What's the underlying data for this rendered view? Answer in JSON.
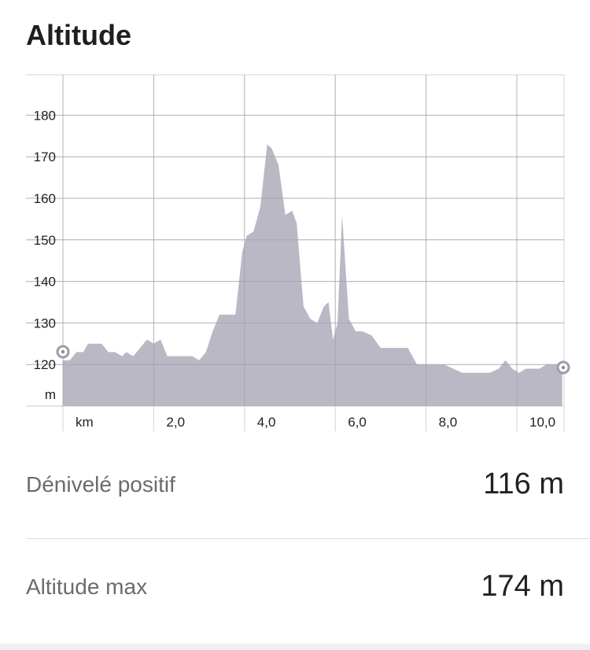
{
  "title": "Altitude",
  "chart_data": {
    "type": "area",
    "y_unit": "m",
    "x_unit": "km",
    "xlim": [
      0,
      11.0
    ],
    "ylim": [
      110,
      190
    ],
    "y_ticks": [
      120,
      130,
      140,
      150,
      160,
      170,
      180
    ],
    "y_tick_labels": [
      "120",
      "130",
      "140",
      "150",
      "160",
      "170",
      "180"
    ],
    "x_ticks": [
      2,
      4,
      6,
      8,
      10
    ],
    "x_tick_labels": [
      "2,0",
      "4,0",
      "6,0",
      "8,0",
      "10,0"
    ],
    "fill_color": "#b6b4c2",
    "grid": true,
    "x": [
      0,
      0.15,
      0.3,
      0.45,
      0.55,
      0.7,
      0.85,
      1.0,
      1.15,
      1.3,
      1.4,
      1.55,
      1.7,
      1.85,
      2.0,
      2.15,
      2.3,
      2.5,
      2.7,
      2.85,
      3.0,
      3.15,
      3.3,
      3.45,
      3.6,
      3.8,
      3.95,
      4.05,
      4.2,
      4.35,
      4.5,
      4.6,
      4.75,
      4.9,
      5.05,
      5.15,
      5.3,
      5.45,
      5.6,
      5.75,
      5.85,
      5.95,
      6.05,
      6.15,
      6.3,
      6.45,
      6.6,
      6.8,
      7.0,
      7.2,
      7.4,
      7.6,
      7.8,
      8.0,
      8.2,
      8.4,
      8.6,
      8.8,
      9.0,
      9.2,
      9.4,
      9.6,
      9.75,
      9.9,
      10.05,
      10.2,
      10.35,
      10.5,
      10.65,
      10.8,
      11.0
    ],
    "y": [
      121,
      121,
      123,
      123,
      125,
      125,
      125,
      123,
      123,
      122,
      123,
      122,
      124,
      126,
      125,
      126,
      122,
      122,
      122,
      122,
      121,
      123,
      128,
      132,
      132,
      132,
      147,
      151,
      152,
      158,
      173,
      172,
      168,
      156,
      157,
      154,
      134,
      131,
      130,
      134,
      135,
      126,
      130,
      156,
      131,
      128,
      128,
      127,
      124,
      124,
      124,
      124,
      120,
      120,
      120,
      120,
      119,
      118,
      118,
      118,
      118,
      119,
      121,
      119,
      118,
      119,
      119,
      119,
      120,
      120,
      120
    ]
  },
  "stats": [
    {
      "label": "Dénivelé positif",
      "value": "116 m"
    },
    {
      "label": "Altitude max",
      "value": "174 m"
    }
  ]
}
